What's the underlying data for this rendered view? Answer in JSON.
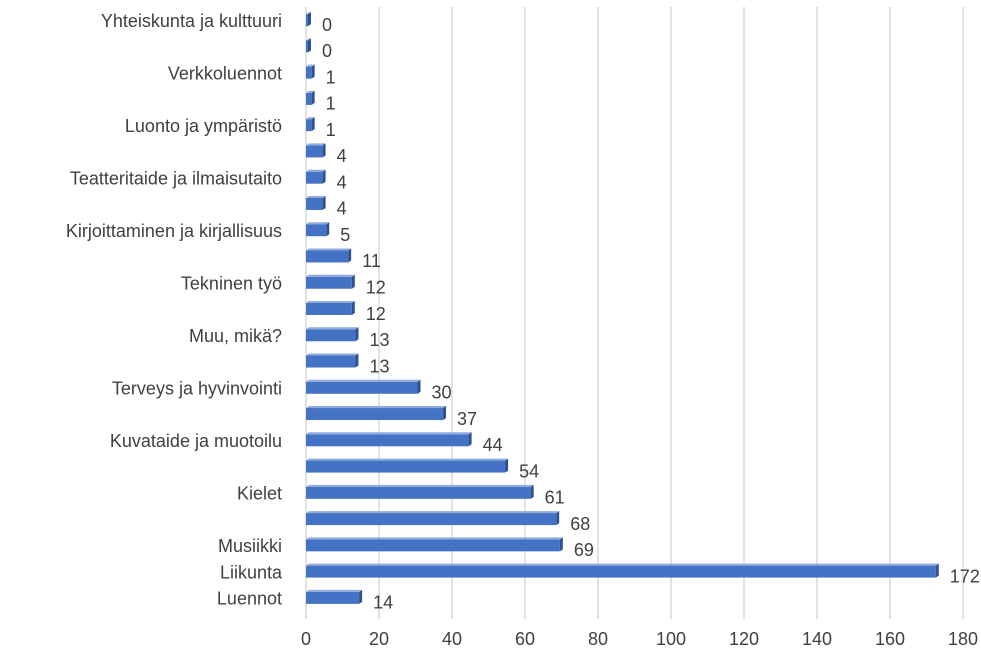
{
  "chart_data": {
    "type": "hbar",
    "categories": [
      "Yhteiskunta ja kulttuuri",
      null,
      "Verkkoluennot",
      null,
      "Luonto ja ympäristö",
      null,
      "Teatteritaide ja ilmaisutaito",
      null,
      "Kirjoittaminen ja kirjallisuus",
      null,
      "Tekninen työ",
      null,
      "Muu, mikä?",
      null,
      "Terveys ja hyvinvointi",
      null,
      "Kuvataide ja muotoilu",
      null,
      "Kielet",
      null,
      "Musiikki",
      "Liikunta",
      "Luennot"
    ],
    "values": [
      0,
      0,
      1,
      1,
      1,
      4,
      4,
      4,
      5,
      11,
      12,
      12,
      13,
      13,
      30,
      37,
      44,
      54,
      61,
      68,
      69,
      172,
      14
    ],
    "color": "#4472c4",
    "xlim": [
      0,
      180
    ],
    "xticks": [
      0,
      20,
      40,
      60,
      80,
      100,
      120,
      140,
      160,
      180
    ],
    "grid": true
  }
}
